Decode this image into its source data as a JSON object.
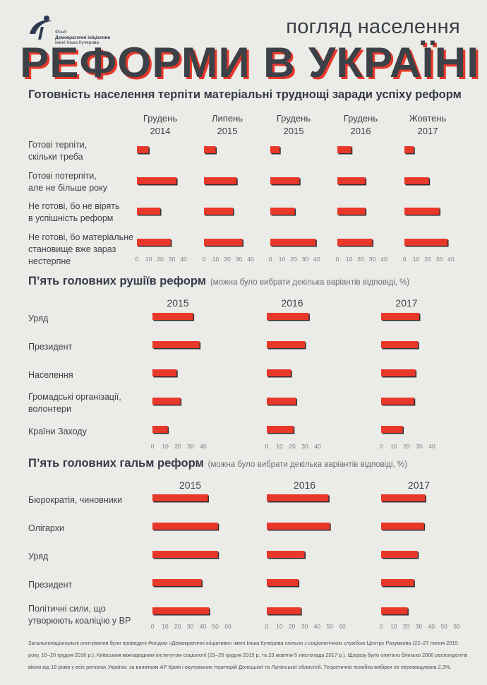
{
  "brand": {
    "line1": "Фонд",
    "line2": "Демократичні ініціативи",
    "line3": "імені Ілька Кучерива"
  },
  "header": {
    "subtitle": "погляд населення",
    "title": "РЕФОРМИ В УКРАЇНІ"
  },
  "colors": {
    "bar": "#e8382a",
    "bar_shadow": "#2b2f36",
    "title_shadow": "#e8382a",
    "background": "#ebebe7"
  },
  "chart_data": [
    {
      "type": "bar",
      "orientation": "horizontal",
      "title": "Готовність населення терпіти матеріальні труднощі заради успіху реформ",
      "periods": [
        [
          "Грудень",
          "2014"
        ],
        [
          "Липень",
          "2015"
        ],
        [
          "Грудень",
          "2015"
        ],
        [
          "Грудень",
          "2016"
        ],
        [
          "Жовтень",
          "2017"
        ]
      ],
      "categories": [
        [
          "Готові терпіти,",
          "скільки треба"
        ],
        [
          "Готові потерпіти,",
          "але не більше року"
        ],
        [
          "Не готові, бо не вірять",
          "в успішність реформ"
        ],
        [
          "Не готові, бо матеріальне",
          "становище вже зараз",
          "нестерпне"
        ]
      ],
      "series": [
        {
          "values": [
            10,
            34,
            20,
            29
          ]
        },
        {
          "values": [
            10,
            28,
            25,
            33
          ]
        },
        {
          "values": [
            8,
            25,
            21,
            39
          ]
        },
        {
          "values": [
            12,
            24,
            24,
            30
          ]
        },
        {
          "values": [
            8,
            21,
            30,
            37
          ]
        }
      ],
      "ticks": [
        0,
        10,
        20,
        30,
        40
      ],
      "xlim": [
        0,
        40
      ],
      "grid": false
    },
    {
      "type": "bar",
      "orientation": "horizontal",
      "title": "П’ять головних рушіїв реформ",
      "note": "(можна було вибрати декілька варіантів відповіді, %)",
      "periods": [
        [
          "2015"
        ],
        [
          "2016"
        ],
        [
          "2017"
        ]
      ],
      "categories": [
        [
          "Уряд"
        ],
        [
          "Президент"
        ],
        [
          "Населення"
        ],
        [
          "Громадські організації,",
          "волонтери"
        ],
        [
          "Країни Заходу"
        ]
      ],
      "series": [
        {
          "values": [
            32,
            37,
            19,
            22,
            12
          ]
        },
        {
          "values": [
            33,
            30,
            19,
            23,
            21
          ]
        },
        {
          "values": [
            30,
            29,
            27,
            26,
            17
          ]
        }
      ],
      "ticks": [
        0,
        10,
        20,
        30,
        40
      ],
      "xlim": [
        0,
        40
      ],
      "grid": false
    },
    {
      "type": "bar",
      "orientation": "horizontal",
      "title": "П’ять головних гальм реформ",
      "note": "(можна було вибрати декілька варіантів відповіді, %)",
      "periods": [
        [
          "2015"
        ],
        [
          "2016"
        ],
        [
          "2017"
        ]
      ],
      "categories": [
        [
          "Бюрократія, чиновники"
        ],
        [
          "Олігархи"
        ],
        [
          "Уряд"
        ],
        [
          "Президент"
        ],
        [
          "Політичні сили, що",
          "утворюють коаліцію у ВР"
        ]
      ],
      "series": [
        {
          "values": [
            44,
            52,
            52,
            39,
            45
          ]
        },
        {
          "values": [
            49,
            50,
            30,
            25,
            27
          ]
        },
        {
          "values": [
            35,
            34,
            29,
            26,
            21
          ]
        }
      ],
      "ticks": [
        0,
        10,
        20,
        30,
        40,
        50,
        60
      ],
      "xlim": [
        0,
        60
      ],
      "grid": false
    }
  ],
  "footnote": "Загальнонаціональні опитування були проведені Фондом «Демократичні ініціативи» імені Ілька Кучерива спільно з соціологічною службою Центру Разумкова (22–27 липня 2015 року, 16–20 грудня 2016 р.), Київським міжнародним інститутом соціології (15–25 грудня 2015 р. та 23 жовтня-5 листопада 2017 р.). Щоразу було опитано близько 2000 респондентів віком від 18 років у всіх регіонах України, за винятком АР Крим і окупованих територій Донецької та Луганської областей. Теоретична похибка вибірки не перевищувала 2,3%."
}
